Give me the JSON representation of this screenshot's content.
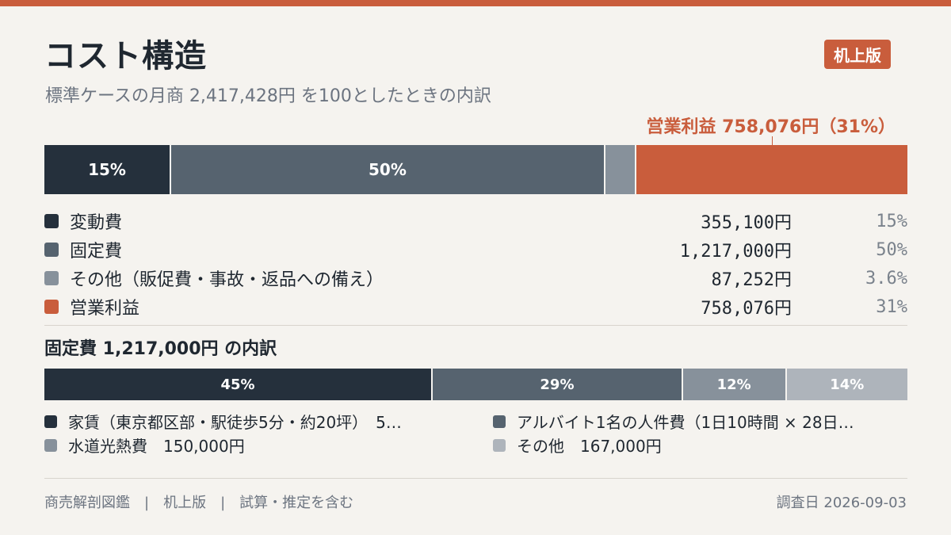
{
  "header": {
    "title": "コスト構造",
    "badge": "机上版",
    "subtitle": "標準ケースの月商 2,417,428円 を100としたときの内訳",
    "profit_callout": "営業利益 758,076円（31%）"
  },
  "colors": {
    "accent": "#c95d3c",
    "dark": "#25303c",
    "slate": "#56636f",
    "gray": "#87919b",
    "light": "#aeb4bb",
    "background": "#f5f3ef"
  },
  "chart_data": [
    {
      "type": "bar",
      "stacked": true,
      "orientation": "horizontal",
      "total": 2417428,
      "series": [
        {
          "name": "変動費",
          "value": 355100,
          "value_label": "355,100円",
          "percent_label": "15%",
          "bar_label": "15%",
          "share": 0.147,
          "color": "#25303c"
        },
        {
          "name": "固定費",
          "value": 1217000,
          "value_label": "1,217,000円",
          "percent_label": "50%",
          "bar_label": "50%",
          "share": 0.503,
          "color": "#56636f"
        },
        {
          "name": "その他（販促費・事故・返品への備え）",
          "value": 87252,
          "value_label": "87,252円",
          "percent_label": "3.6%",
          "bar_label": "",
          "share": 0.036,
          "color": "#87919b"
        },
        {
          "name": "営業利益",
          "value": 758076,
          "value_label": "758,076円",
          "percent_label": "31%",
          "bar_label": "",
          "share": 0.314,
          "color": "#c95d3c"
        }
      ]
    },
    {
      "type": "bar",
      "stacked": true,
      "orientation": "horizontal",
      "title": "固定費 1,217,000円 の内訳",
      "series": [
        {
          "name": "家賃（東京都区部・駅徒歩5分・約20坪）　5…",
          "share": 0.45,
          "bar_label": "45%",
          "color": "#25303c"
        },
        {
          "name": "アルバイト1名の人件費（1日10時間 × 28日…",
          "share": 0.29,
          "bar_label": "29%",
          "color": "#56636f"
        },
        {
          "name": "水道光熱費　150,000円",
          "share": 0.12,
          "bar_label": "12%",
          "color": "#87919b"
        },
        {
          "name": "その他　167,000円",
          "share": 0.14,
          "bar_label": "14%",
          "color": "#aeb4bb"
        }
      ]
    }
  ],
  "footer": {
    "left": "商売解剖図鑑　|　机上版　|　試算・推定を含む",
    "right": "調査日 2026-09-03"
  }
}
